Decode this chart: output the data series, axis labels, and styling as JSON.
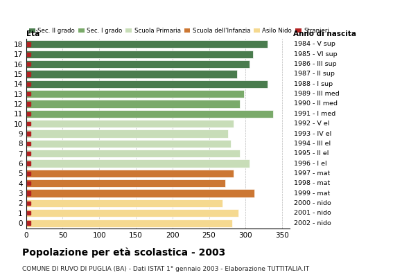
{
  "ages": [
    18,
    17,
    16,
    15,
    14,
    13,
    12,
    11,
    10,
    9,
    8,
    7,
    6,
    5,
    4,
    3,
    2,
    1,
    0
  ],
  "values": [
    330,
    310,
    305,
    288,
    330,
    298,
    292,
    338,
    284,
    276,
    280,
    292,
    305,
    284,
    272,
    312,
    268,
    290,
    282
  ],
  "bar_colors": [
    "#4a7c4e",
    "#4a7c4e",
    "#4a7c4e",
    "#4a7c4e",
    "#4a7c4e",
    "#7aaa6a",
    "#7aaa6a",
    "#7aaa6a",
    "#c8ddb8",
    "#c8ddb8",
    "#c8ddb8",
    "#c8ddb8",
    "#c8ddb8",
    "#cc7733",
    "#cc7733",
    "#cc7733",
    "#f5d990",
    "#f5d990",
    "#f5d990"
  ],
  "right_labels": [
    "1984 - V sup",
    "1985 - VI sup",
    "1986 - III sup",
    "1987 - II sup",
    "1988 - I sup",
    "1989 - III med",
    "1990 - II med",
    "1991 - I med",
    "1992 - V el",
    "1993 - IV el",
    "1994 - III el",
    "1995 - II el",
    "1996 - I el",
    "1997 - mat",
    "1998 - mat",
    "1999 - mat",
    "2000 - nido",
    "2001 - nido",
    "2002 - nido"
  ],
  "legend_labels": [
    "Sec. II grado",
    "Sec. I grado",
    "Scuola Primaria",
    "Scuola dell'Infanzia",
    "Asilo Nido",
    "Stranieri"
  ],
  "legend_colors": [
    "#4a7c4e",
    "#7aaa6a",
    "#c8ddb8",
    "#cc7733",
    "#f5d990",
    "#b22222"
  ],
  "stranieri_color": "#b22222",
  "title": "Popolazione per età scolastica - 2003",
  "subtitle": "COMUNE DI RUVO DI PUGLIA (BA) - Dati ISTAT 1° gennaio 2003 - Elaborazione TUTTITALIA.IT",
  "xlabel_eta": "Età",
  "xlabel_anno": "Anno di nascita",
  "xlim": [
    0,
    360
  ],
  "xticks": [
    0,
    50,
    100,
    150,
    200,
    250,
    300,
    350
  ],
  "figsize": [
    5.8,
    4.0
  ],
  "dpi": 100,
  "background_color": "#ffffff",
  "grid_color": "#bbbbbb"
}
